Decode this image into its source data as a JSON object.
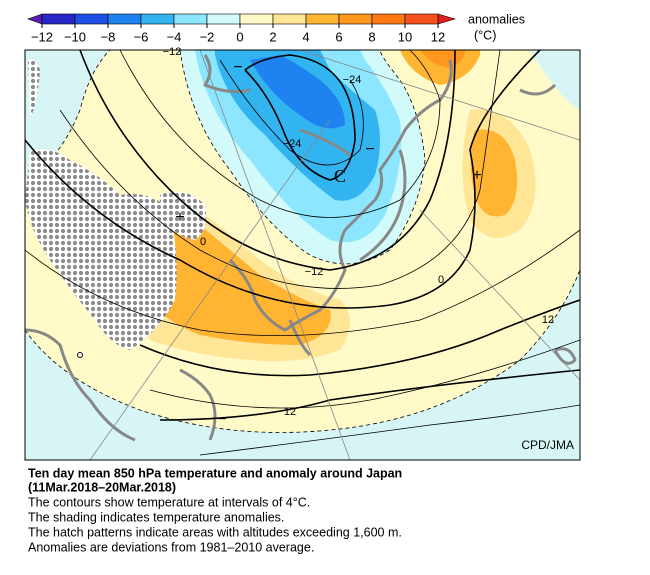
{
  "colorbar": {
    "title": "anomalies",
    "unit": "(°C)",
    "ticks": [
      {
        "value": -12,
        "label": "−12"
      },
      {
        "value": -10,
        "label": "−10"
      },
      {
        "value": -8,
        "label": "−8"
      },
      {
        "value": -6,
        "label": "−6"
      },
      {
        "value": -4,
        "label": "−4"
      },
      {
        "value": -2,
        "label": "−2"
      },
      0,
      2,
      4,
      6,
      8,
      10,
      12
    ],
    "colors": [
      "#5a1eb4",
      "#2828c8",
      "#1e50e6",
      "#1e82f0",
      "#32b4f0",
      "#8ce6ff",
      "#d2fafa",
      "#fffac8",
      "#ffe696",
      "#ffb432",
      "#ff961e",
      "#ff7814",
      "#f5501e",
      "#e61e1e"
    ]
  },
  "map": {
    "contour_labels": [
      "−12",
      "−24",
      "−24",
      "−12",
      "0",
      "0",
      "12",
      "12"
    ],
    "symbols": [
      "C",
      "+",
      "+",
      "−",
      "−",
      "−"
    ],
    "credit": "CPD/JMA"
  },
  "caption": {
    "title": "Ten day mean 850 hPa temperature and anomaly around Japan",
    "period": "(11Mar.2018–20Mar.2018)",
    "lines": [
      "The contours show temperature at intervals of 4°C.",
      "The shading indicates temperature anomalies.",
      "The hatch patterns indicate areas with altitudes exceeding 1,600 m.",
      "Anomalies are deviations from 1981–2010 average."
    ]
  }
}
